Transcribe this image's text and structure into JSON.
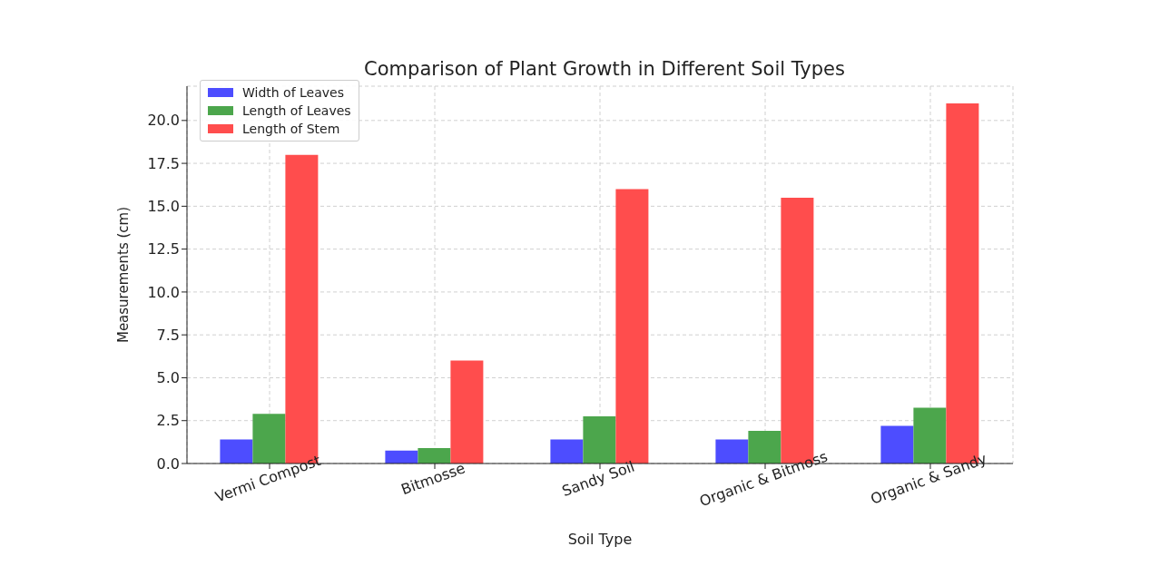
{
  "chart_data": {
    "type": "bar",
    "title": "Comparison of Plant Growth in Different Soil Types",
    "xlabel": "Soil Type",
    "ylabel": "Measurements (cm)",
    "categories": [
      "Vermi Compost",
      "Bitmosse",
      "Sandy Soil",
      "Organic & Bitmoss",
      "Organic & Sandy"
    ],
    "series": [
      {
        "name": "Width of Leaves",
        "color": "#4d4dff",
        "values": [
          1.4,
          0.75,
          1.4,
          1.4,
          2.2
        ]
      },
      {
        "name": "Length of Leaves",
        "color": "#4ca64c",
        "values": [
          2.9,
          0.9,
          2.75,
          1.9,
          3.25
        ]
      },
      {
        "name": "Length of Stem",
        "color": "#ff4d4d",
        "values": [
          18,
          6,
          16,
          15.5,
          21
        ]
      }
    ],
    "ylim": [
      0,
      22
    ],
    "yticks": [
      {
        "value": 0,
        "label": "0.0"
      },
      {
        "value": 2.5,
        "label": "2.5"
      },
      {
        "value": 5,
        "label": "5.0"
      },
      {
        "value": 7.5,
        "label": "7.5"
      },
      {
        "value": 10,
        "label": "10.0"
      },
      {
        "value": 12.5,
        "label": "12.5"
      },
      {
        "value": 15,
        "label": "15.0"
      },
      {
        "value": 17.5,
        "label": "17.5"
      },
      {
        "value": 20,
        "label": "20.0"
      }
    ],
    "grid": true,
    "legend": "top left"
  }
}
